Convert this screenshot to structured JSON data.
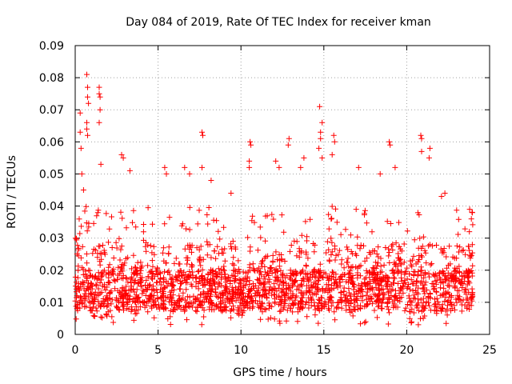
{
  "chart_data": {
    "type": "scatter",
    "title": "Day 084 of 2019, Rate Of TEC Index for receiver kman",
    "xlabel": "GPS time / hours",
    "ylabel": "ROTI / TECUs",
    "xlim": [
      0,
      25
    ],
    "ylim": [
      0,
      0.09
    ],
    "xticks": [
      0,
      5,
      10,
      15,
      20,
      25
    ],
    "xtick_labels": [
      "0",
      "5",
      "10",
      "15",
      "20",
      "25"
    ],
    "yticks": [
      0,
      0.01,
      0.02,
      0.03,
      0.04,
      0.05,
      0.06,
      0.07,
      0.08,
      0.09
    ],
    "ytick_labels": [
      "0",
      "0.01",
      "0.02",
      "0.03",
      "0.04",
      "0.05",
      "0.06",
      "0.07",
      "0.08",
      "0.09"
    ],
    "grid": true,
    "marker": "+",
    "series": [
      {
        "name": "ROTI",
        "color": "#ff0000",
        "points": [
          [
            0.3,
            0.069
          ],
          [
            0.3,
            0.063
          ],
          [
            0.35,
            0.058
          ],
          [
            0.4,
            0.05
          ],
          [
            0.5,
            0.045
          ],
          [
            0.7,
            0.081
          ],
          [
            0.75,
            0.077
          ],
          [
            0.75,
            0.074
          ],
          [
            0.8,
            0.072
          ],
          [
            0.7,
            0.066
          ],
          [
            0.7,
            0.064
          ],
          [
            0.75,
            0.062
          ],
          [
            1.45,
            0.077
          ],
          [
            1.45,
            0.075
          ],
          [
            1.5,
            0.074
          ],
          [
            1.5,
            0.07
          ],
          [
            1.45,
            0.066
          ],
          [
            1.55,
            0.053
          ],
          [
            2.8,
            0.056
          ],
          [
            2.9,
            0.055
          ],
          [
            3.3,
            0.051
          ],
          [
            5.4,
            0.052
          ],
          [
            5.5,
            0.05
          ],
          [
            6.6,
            0.052
          ],
          [
            6.9,
            0.05
          ],
          [
            7.65,
            0.063
          ],
          [
            7.7,
            0.062
          ],
          [
            7.65,
            0.052
          ],
          [
            8.2,
            0.048
          ],
          [
            9.4,
            0.044
          ],
          [
            10.55,
            0.06
          ],
          [
            10.6,
            0.059
          ],
          [
            10.5,
            0.054
          ],
          [
            10.5,
            0.052
          ],
          [
            12.1,
            0.054
          ],
          [
            12.3,
            0.052
          ],
          [
            12.9,
            0.061
          ],
          [
            12.85,
            0.059
          ],
          [
            13.6,
            0.052
          ],
          [
            13.8,
            0.055
          ],
          [
            14.75,
            0.071
          ],
          [
            14.9,
            0.066
          ],
          [
            14.8,
            0.063
          ],
          [
            14.8,
            0.061
          ],
          [
            14.7,
            0.058
          ],
          [
            14.9,
            0.055
          ],
          [
            15.6,
            0.062
          ],
          [
            15.65,
            0.06
          ],
          [
            15.5,
            0.056
          ],
          [
            17.1,
            0.052
          ],
          [
            18.4,
            0.05
          ],
          [
            18.95,
            0.06
          ],
          [
            19.0,
            0.059
          ],
          [
            19.3,
            0.052
          ],
          [
            20.85,
            0.062
          ],
          [
            20.9,
            0.061
          ],
          [
            20.9,
            0.057
          ],
          [
            21.4,
            0.058
          ],
          [
            21.35,
            0.055
          ],
          [
            22.1,
            0.043
          ],
          [
            22.3,
            0.044
          ],
          [
            23.8,
            0.039
          ],
          [
            23.9,
            0.036
          ]
        ]
      }
    ]
  }
}
